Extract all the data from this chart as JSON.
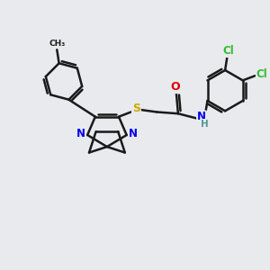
{
  "background_color": "#e8eaed",
  "bond_color": "#1a1a1a",
  "bond_width": 1.8,
  "atom_colors": {
    "C": "#1a1a1a",
    "N": "#0000ee",
    "O": "#dd0000",
    "S": "#ccaa00",
    "Cl": "#33bb33",
    "H": "#559999"
  },
  "label_fontsize": 8.5,
  "figsize": [
    3.0,
    3.0
  ],
  "dpi": 100
}
